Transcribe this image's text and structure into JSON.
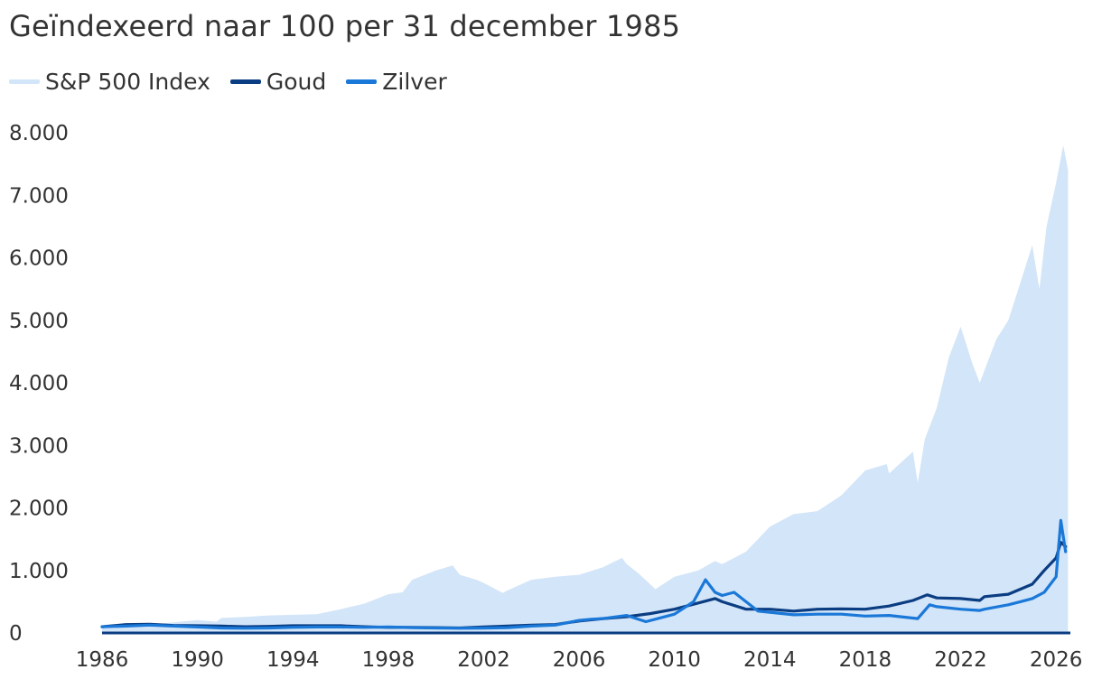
{
  "title": "Geïndexeerd naar 100 per 31 december 1985",
  "legend": [
    {
      "label": "S&P 500 Index",
      "color": "#d3e5f8"
    },
    {
      "label": "Goud",
      "color": "#0b3d82"
    },
    {
      "label": "Zilver",
      "color": "#1a78d8"
    }
  ],
  "chart_data": {
    "type": "line",
    "ylim": [
      0,
      8000
    ],
    "xlim": [
      1986,
      2026.6
    ],
    "y_ticks": [
      0,
      1000,
      2000,
      3000,
      4000,
      5000,
      6000,
      7000,
      8000
    ],
    "y_tick_labels": [
      "0",
      "1.000",
      "2.000",
      "3.000",
      "4.000",
      "5.000",
      "6.000",
      "7.000",
      "8.000"
    ],
    "x_ticks": [
      1986,
      1990,
      1994,
      1998,
      2002,
      2006,
      2010,
      2014,
      2018,
      2022,
      2026
    ],
    "x_tick_labels": [
      "1986",
      "1990",
      "1994",
      "1998",
      "2002",
      "2006",
      "2010",
      "2014",
      "2018",
      "2022",
      "2026"
    ],
    "grid": false,
    "legend_position": "top-left",
    "series": [
      {
        "name": "S&P 500 Index",
        "style": "area",
        "color": "#d3e5f8",
        "x": [
          1986,
          1987,
          1987.8,
          1988,
          1989,
          1990,
          1990.8,
          1991,
          1992,
          1993,
          1994,
          1995,
          1996,
          1997,
          1998,
          1998.6,
          1999,
          2000,
          2000.7,
          2001,
          2001.7,
          2002,
          2002.8,
          2003,
          2004,
          2005,
          2006,
          2007,
          2007.8,
          2008,
          2008.5,
          2009.2,
          2010,
          2011,
          2011.7,
          2012,
          2013,
          2014,
          2015,
          2016,
          2017,
          2018,
          2018.9,
          2019,
          2020,
          2020.2,
          2020.5,
          2021,
          2021.5,
          2022,
          2022.5,
          2022.8,
          2023,
          2023.5,
          2024,
          2024.5,
          2025,
          2025.3,
          2025.6,
          2026,
          2026.3,
          2026.5
        ],
        "values": [
          100,
          145,
          130,
          135,
          170,
          205,
          180,
          240,
          255,
          280,
          290,
          300,
          380,
          470,
          620,
          650,
          850,
          1000,
          1080,
          930,
          850,
          800,
          640,
          680,
          850,
          900,
          930,
          1050,
          1200,
          1100,
          950,
          700,
          900,
          1000,
          1150,
          1100,
          1300,
          1700,
          1900,
          1950,
          2200,
          2600,
          2700,
          2550,
          2900,
          2400,
          3100,
          3600,
          4400,
          4900,
          4300,
          4000,
          4200,
          4700,
          5000,
          5600,
          6200,
          5500,
          6500,
          7200,
          7800,
          7400
        ]
      },
      {
        "name": "Goud",
        "style": "line",
        "color": "#0b3d82",
        "x": [
          1986,
          1987,
          1988,
          1989,
          1990,
          1991,
          1992,
          1993,
          1994,
          1995,
          1996,
          1997,
          1998,
          1999,
          2000,
          2001,
          2002,
          2003,
          2004,
          2005,
          2006,
          2007,
          2008,
          2009,
          2010,
          2011,
          2011.7,
          2012,
          2013,
          2014,
          2015,
          2016,
          2017,
          2018,
          2019,
          2020,
          2020.6,
          2021,
          2022,
          2022.8,
          2023,
          2024,
          2025,
          2025.5,
          2026,
          2026.2,
          2026.4
        ],
        "values": [
          100,
          135,
          140,
          120,
          115,
          110,
          100,
          105,
          115,
          115,
          115,
          100,
          90,
          90,
          85,
          80,
          95,
          110,
          125,
          135,
          190,
          230,
          260,
          310,
          380,
          480,
          550,
          500,
          380,
          380,
          350,
          380,
          385,
          380,
          430,
          520,
          610,
          560,
          550,
          520,
          580,
          620,
          780,
          1000,
          1200,
          1450,
          1380
        ]
      },
      {
        "name": "Zilver",
        "style": "line",
        "color": "#1a78d8",
        "x": [
          1986,
          1987,
          1988,
          1989,
          1990,
          1991,
          1992,
          1993,
          1994,
          1995,
          1996,
          1997,
          1998,
          1999,
          2000,
          2001,
          2002,
          2003,
          2004,
          2005,
          2006,
          2006.5,
          2007,
          2008,
          2008.8,
          2009.5,
          2010,
          2010.8,
          2011.3,
          2011.7,
          2012,
          2012.5,
          2013,
          2013.5,
          2014,
          2015,
          2016,
          2017,
          2018,
          2019,
          2020.2,
          2020.7,
          2021,
          2022,
          2022.8,
          2023,
          2024,
          2024.5,
          2025,
          2025.5,
          2026,
          2026.2,
          2026.4
        ],
        "values": [
          100,
          110,
          125,
          110,
          95,
          80,
          75,
          80,
          90,
          95,
          95,
          90,
          95,
          85,
          80,
          75,
          78,
          85,
          110,
          125,
          200,
          220,
          230,
          280,
          180,
          250,
          300,
          500,
          850,
          650,
          600,
          650,
          500,
          350,
          330,
          290,
          300,
          300,
          270,
          280,
          230,
          450,
          420,
          380,
          360,
          380,
          450,
          500,
          550,
          650,
          900,
          1800,
          1300
        ]
      }
    ]
  }
}
